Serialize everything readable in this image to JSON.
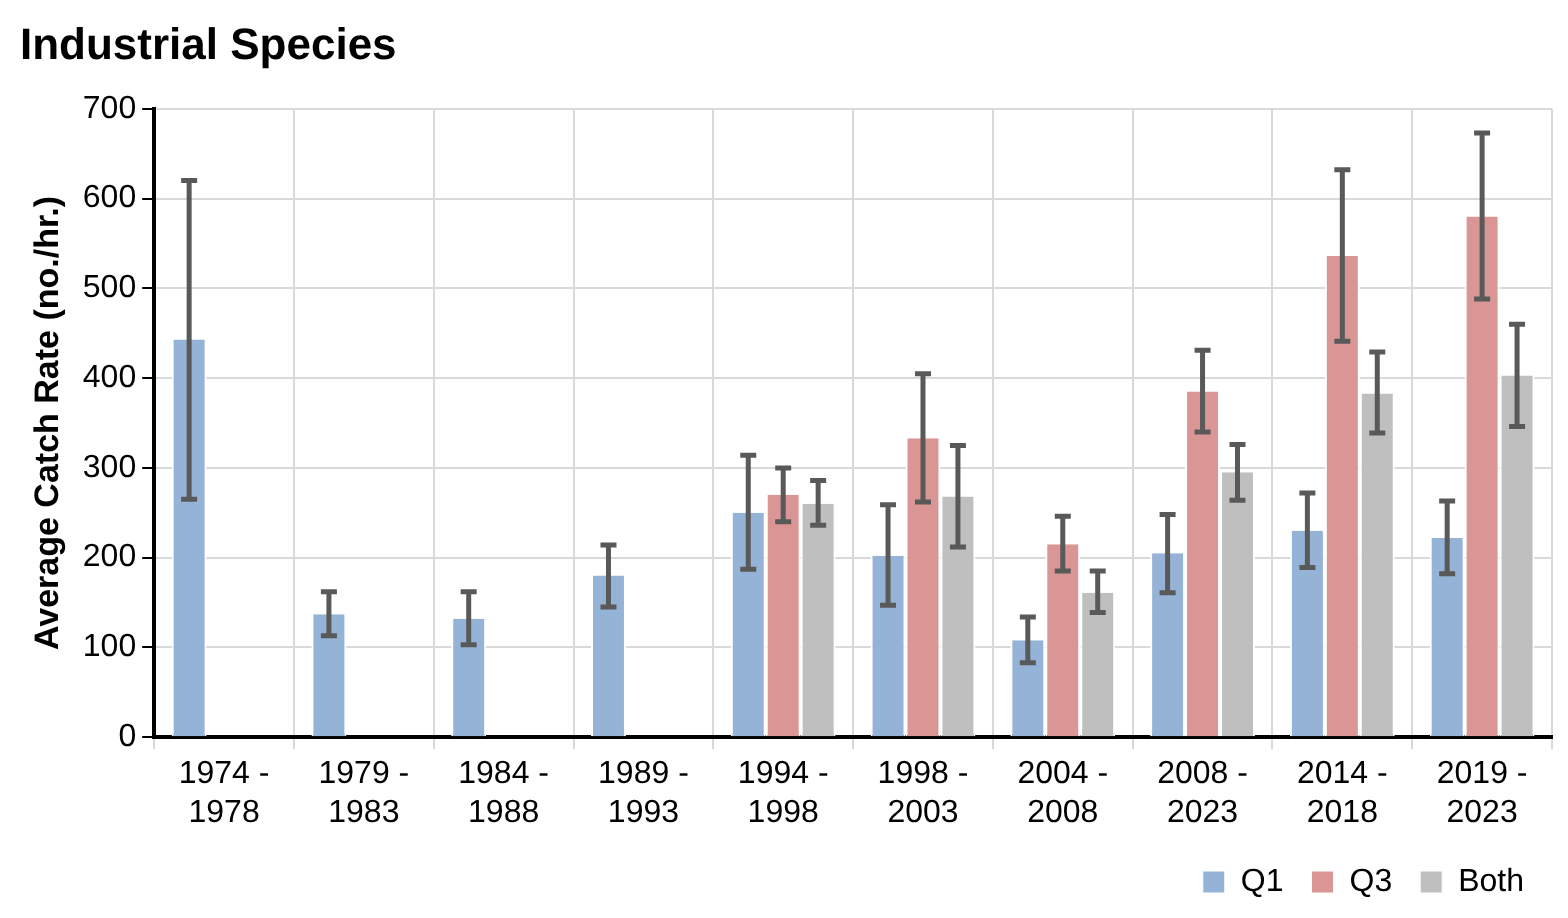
{
  "chart_data": {
    "type": "bar",
    "title": "Industrial Species",
    "ylabel": "Average Catch Rate (no./hr.)",
    "categories": [
      "1974 -\n1978",
      "1979 -\n1983",
      "1984 -\n1988",
      "1989 -\n1993",
      "1994 -\n1998",
      "1998 -\n2003",
      "2004 -\n2008",
      "2008 -\n2023",
      "2014 -\n2018",
      "2019 -\n2023"
    ],
    "series": [
      {
        "name": "Q1",
        "color": "#95b3d7",
        "values": [
          443,
          137,
          132,
          180,
          250,
          202,
          108,
          205,
          230,
          222
        ],
        "errors": [
          [
            265,
            620
          ],
          [
            113,
            162
          ],
          [
            103,
            162
          ],
          [
            145,
            214
          ],
          [
            187,
            314
          ],
          [
            147,
            259
          ],
          [
            83,
            134
          ],
          [
            161,
            248
          ],
          [
            189,
            272
          ],
          [
            182,
            263
          ]
        ]
      },
      {
        "name": "Q3",
        "color": "#da9694",
        "values": [
          null,
          null,
          null,
          null,
          270,
          333,
          215,
          385,
          536,
          580
        ],
        "errors": [
          null,
          null,
          null,
          null,
          [
            240,
            300
          ],
          [
            262,
            405
          ],
          [
            185,
            246
          ],
          [
            340,
            431
          ],
          [
            441,
            632
          ],
          [
            488,
            673
          ]
        ]
      },
      {
        "name": "Both",
        "color": "#bfbfbf",
        "values": [
          null,
          null,
          null,
          null,
          260,
          268,
          161,
          295,
          383,
          403
        ],
        "errors": [
          null,
          null,
          null,
          null,
          [
            236,
            286
          ],
          [
            212,
            325
          ],
          [
            139,
            185
          ],
          [
            264,
            326
          ],
          [
            339,
            429
          ],
          [
            346,
            460
          ]
        ]
      }
    ],
    "ylim": [
      0,
      700
    ],
    "yticks": [
      0,
      100,
      200,
      300,
      400,
      500,
      600,
      700
    ],
    "grid": true,
    "legend": "bottom right"
  }
}
